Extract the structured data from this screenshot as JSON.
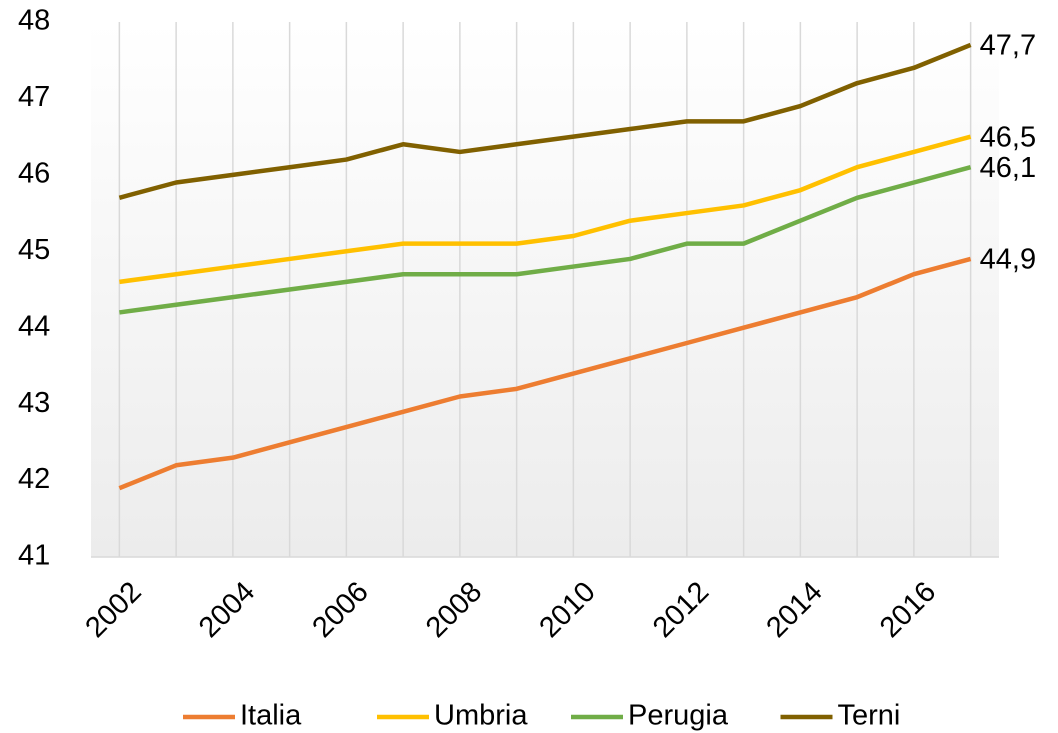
{
  "chart_data": {
    "type": "line",
    "categories": [
      "2002",
      null,
      "2004",
      null,
      "2006",
      null,
      "2008",
      null,
      "2010",
      null,
      "2012",
      null,
      "2014",
      null,
      "2016",
      null
    ],
    "series": [
      {
        "name": "Italia",
        "color": "#ed7d31",
        "values": [
          41.9,
          42.2,
          42.3,
          42.5,
          42.7,
          42.9,
          43.1,
          43.2,
          43.4,
          43.6,
          43.8,
          44.0,
          44.2,
          44.4,
          44.7,
          44.9
        ],
        "value_labels": [
          null,
          null,
          null,
          null,
          null,
          null,
          null,
          null,
          null,
          null,
          null,
          null,
          null,
          null,
          null,
          "44,9"
        ]
      },
      {
        "name": "Umbria",
        "color": "#ffc000",
        "values": [
          44.6,
          44.7,
          44.8,
          44.9,
          45.0,
          45.1,
          45.1,
          45.1,
          45.2,
          45.4,
          45.5,
          45.6,
          45.8,
          46.1,
          46.3,
          46.5
        ],
        "value_labels": [
          null,
          null,
          null,
          null,
          null,
          null,
          null,
          null,
          null,
          null,
          null,
          null,
          null,
          null,
          null,
          "46,5"
        ]
      },
      {
        "name": "Perugia",
        "color": "#70ad47",
        "values": [
          44.2,
          44.3,
          44.4,
          44.5,
          44.6,
          44.7,
          44.7,
          44.7,
          44.8,
          44.9,
          45.1,
          45.1,
          45.4,
          45.7,
          45.9,
          46.1
        ],
        "value_labels": [
          null,
          null,
          null,
          null,
          null,
          null,
          null,
          null,
          null,
          null,
          null,
          null,
          null,
          null,
          null,
          "46,1"
        ]
      },
      {
        "name": "Terni",
        "color": "#806000",
        "values": [
          45.7,
          45.9,
          46.0,
          46.1,
          46.2,
          46.4,
          46.3,
          46.4,
          46.5,
          46.6,
          46.7,
          46.7,
          46.9,
          47.2,
          47.4,
          47.7
        ],
        "value_labels": [
          null,
          null,
          null,
          null,
          null,
          null,
          null,
          null,
          null,
          null,
          null,
          null,
          null,
          null,
          null,
          "47,7"
        ]
      }
    ],
    "ylim": [
      41,
      48
    ],
    "yticks": [
      41,
      42,
      43,
      44,
      45,
      46,
      47,
      48
    ],
    "legend": "bottom"
  }
}
